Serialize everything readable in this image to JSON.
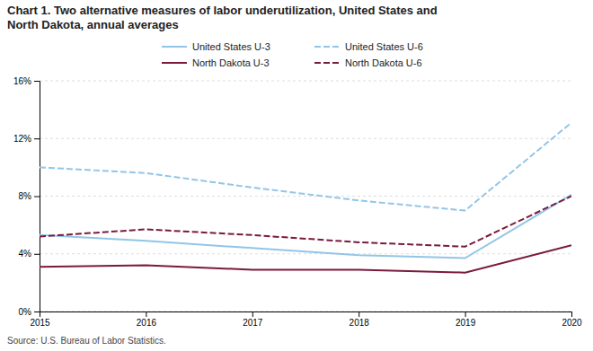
{
  "chart_data": {
    "type": "line",
    "title": "Chart 1. Two alternative measures of labor underutilization, United States and\nNorth Dakota, annual averages",
    "x": [
      2015,
      2016,
      2017,
      2018,
      2019,
      2020
    ],
    "series": [
      {
        "name": "United States U-3",
        "color": "#92C5E8",
        "line_style": "solid",
        "values": [
          5.3,
          4.9,
          4.4,
          3.9,
          3.7,
          8.1
        ]
      },
      {
        "name": "United States U-6",
        "color": "#92C5E8",
        "line_style": "dashed",
        "values": [
          10.0,
          9.6,
          8.6,
          7.7,
          7.0,
          13.1
        ]
      },
      {
        "name": "North Dakota U-3",
        "color": "#7B1A3C",
        "line_style": "solid",
        "values": [
          3.1,
          3.2,
          2.9,
          2.9,
          2.7,
          4.6
        ]
      },
      {
        "name": "North Dakota U-6",
        "color": "#7B1A3C",
        "line_style": "dashed",
        "values": [
          5.2,
          5.7,
          5.3,
          4.8,
          4.5,
          8.0
        ]
      }
    ],
    "xlim": [
      2015,
      2020
    ],
    "xticks": [
      2015,
      2016,
      2017,
      2018,
      2019,
      2020
    ],
    "ylim": [
      0,
      16
    ],
    "yticks": [
      {
        "value": 0,
        "label": "0%"
      },
      {
        "value": 4,
        "label": "4%"
      },
      {
        "value": 8,
        "label": "8%"
      },
      {
        "value": 12,
        "label": "12%"
      },
      {
        "value": 16,
        "label": "16%"
      }
    ],
    "grid": true,
    "legend": "top",
    "annotations": [
      "Source: U.S. Bureau of Labor Statistics."
    ]
  }
}
